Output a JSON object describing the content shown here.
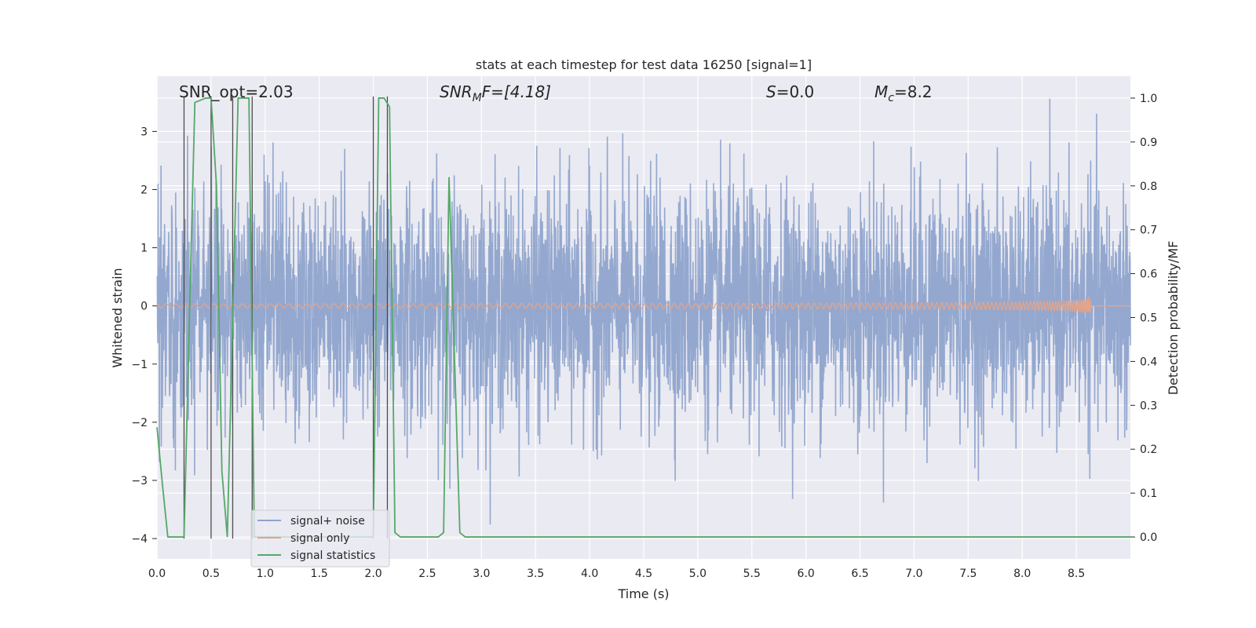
{
  "chart_data": {
    "type": "line",
    "title": "stats at each timestep for test data 16250 [signal=1]",
    "xlabel": "Time (s)",
    "ylabel_left": "Whitened strain",
    "ylabel_right": "Detection probability/MF",
    "xlim": [
      0.0,
      9.0
    ],
    "ylim_left": [
      -4.35,
      3.95
    ],
    "ylim_right": [
      -0.05,
      1.05
    ],
    "x_ticks": [
      "0.0",
      "0.5",
      "1.0",
      "1.5",
      "2.0",
      "2.5",
      "3.0",
      "3.5",
      "4.0",
      "4.5",
      "5.0",
      "5.5",
      "6.0",
      "6.5",
      "7.0",
      "7.5",
      "8.0",
      "8.5"
    ],
    "y_left_ticks": [
      "3",
      "2",
      "1",
      "0",
      "−1",
      "−2",
      "−3",
      "−4"
    ],
    "y_right_ticks": [
      "1.0",
      "0.9",
      "0.8",
      "0.7",
      "0.6",
      "0.5",
      "0.4",
      "0.3",
      "0.2",
      "0.1",
      "0.0"
    ],
    "grid": true,
    "legend_position": "lower-left",
    "annotations": {
      "snr_opt": "SNR_opt=2.03",
      "snr_mf_italic": "SNR",
      "snr_mf_sub": "M",
      "snr_mf_rest": "F=[4.18]",
      "s_italic": "S",
      "s_rest": "=0.0",
      "mc_italic": "M",
      "mc_sub": "c",
      "mc_rest": "=8.2"
    },
    "series": [
      {
        "name": "signal+ noise",
        "color": "#8fa4cc",
        "noise_std": 1.0,
        "abs_max": 4.0
      },
      {
        "name": "signal only",
        "color": "#e1a48c",
        "chirp_end_x": 8.64,
        "chirp_peak_amplitude": 0.25
      },
      {
        "name": "signal statistics",
        "color": "#55a868",
        "x": [
          0.0,
          0.05,
          0.1,
          0.2,
          0.25,
          0.3,
          0.35,
          0.45,
          0.5,
          0.55,
          0.6,
          0.65,
          0.7,
          0.75,
          0.8,
          0.85,
          0.9,
          1.95,
          2.0,
          2.05,
          2.1,
          2.15,
          2.2,
          2.25,
          2.3,
          2.6,
          2.65,
          2.7,
          2.8,
          2.85,
          3.5,
          9.0
        ],
        "y": [
          0.25,
          0.12,
          0.0,
          0.0,
          0.0,
          0.5,
          0.99,
          1.0,
          1.0,
          0.8,
          0.15,
          0.0,
          0.5,
          1.0,
          1.0,
          1.0,
          0.0,
          0.0,
          0.0,
          1.0,
          1.0,
          0.98,
          0.01,
          0.0,
          0.0,
          0.0,
          0.01,
          0.82,
          0.01,
          0.0,
          0.0,
          0.0
        ]
      },
      {
        "name": "",
        "color": "#4c4c4c",
        "vertical_lines_x": [
          0.25,
          0.5,
          0.7,
          0.88,
          2.0,
          2.13
        ]
      }
    ]
  }
}
